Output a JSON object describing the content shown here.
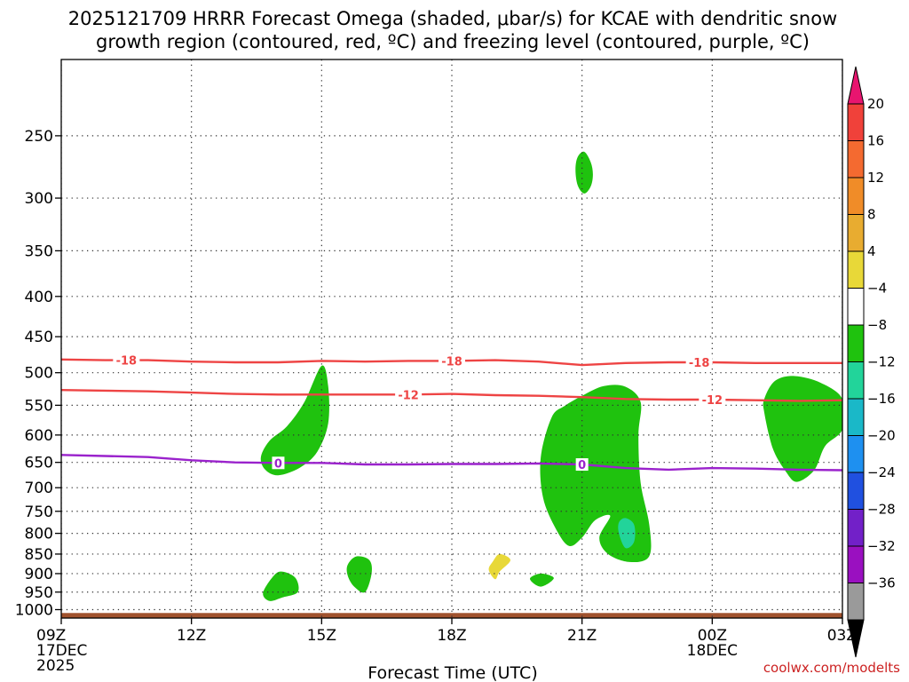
{
  "chart_data": {
    "type": "contour",
    "title_line1": "2025121709 HRRR Forecast Omega (shaded, μbar/s) for KCAE with dendritic snow",
    "title_line2": "growth region (contoured, red, ºC) and freezing level (contoured, purple, ºC)",
    "xlabel": "Forecast Time (UTC)",
    "x_ticks": [
      {
        "hour": 0,
        "label": "09Z",
        "sub1": "17DEC",
        "sub2": "2025"
      },
      {
        "hour": 3,
        "label": "12Z",
        "sub1": "",
        "sub2": ""
      },
      {
        "hour": 6,
        "label": "15Z",
        "sub1": "",
        "sub2": ""
      },
      {
        "hour": 9,
        "label": "18Z",
        "sub1": "",
        "sub2": ""
      },
      {
        "hour": 12,
        "label": "21Z",
        "sub1": "",
        "sub2": ""
      },
      {
        "hour": 15,
        "label": "00Z",
        "sub1": "18DEC",
        "sub2": ""
      },
      {
        "hour": 18,
        "label": "03Z",
        "sub1": "",
        "sub2": ""
      }
    ],
    "x_range_hours": [
      0,
      18
    ],
    "y_axis": "pressure (hPa), log scale, reversed",
    "y_range_hpa": [
      1025,
      200
    ],
    "y_ticks": [
      250,
      300,
      350,
      400,
      450,
      500,
      550,
      600,
      650,
      700,
      750,
      800,
      850,
      900,
      950,
      1000
    ],
    "grid": "dotted",
    "colorbar": {
      "unit": "μbar/s",
      "labels": [
        "20",
        "16",
        "12",
        "8",
        "4",
        "−4",
        "−8",
        "−12",
        "−16",
        "−20",
        "−24",
        "−28",
        "−32",
        "−36"
      ],
      "colors": [
        "#e8156f",
        "#f0413a",
        "#f46a30",
        "#f08c28",
        "#e8ac30",
        "#e8d838",
        "#ffffff",
        "#1fc20e",
        "#22d49a",
        "#1ab8c8",
        "#1e90f0",
        "#2050e0",
        "#7220c8",
        "#9a10c0",
        "#9a9a9a",
        "#000000"
      ]
    },
    "lines": [
      {
        "name": "dendritic growth -18C",
        "label": "-18",
        "color": "#ee4444",
        "points": [
          [
            0,
            481
          ],
          [
            1,
            482
          ],
          [
            2,
            482
          ],
          [
            3,
            484
          ],
          [
            4,
            485
          ],
          [
            5,
            485
          ],
          [
            6,
            483
          ],
          [
            7,
            484
          ],
          [
            8,
            483
          ],
          [
            9,
            483
          ],
          [
            10,
            482
          ],
          [
            11,
            484
          ],
          [
            12,
            489
          ],
          [
            13,
            486
          ],
          [
            14,
            485
          ],
          [
            15,
            485
          ],
          [
            16,
            486
          ],
          [
            17,
            486
          ],
          [
            18,
            486
          ]
        ],
        "label_hours": [
          1.5,
          9.0,
          14.7
        ]
      },
      {
        "name": "dendritic growth -12C",
        "label": "-12",
        "color": "#ee4444",
        "points": [
          [
            0,
            526
          ],
          [
            1,
            527
          ],
          [
            2,
            528
          ],
          [
            3,
            530
          ],
          [
            4,
            532
          ],
          [
            5,
            533
          ],
          [
            6,
            533
          ],
          [
            7,
            533
          ],
          [
            8,
            533
          ],
          [
            9,
            532
          ],
          [
            10,
            534
          ],
          [
            11,
            535
          ],
          [
            12,
            537
          ],
          [
            13,
            540
          ],
          [
            14,
            541
          ],
          [
            15,
            541
          ],
          [
            16,
            542
          ],
          [
            17,
            543
          ],
          [
            18,
            542
          ]
        ],
        "label_hours": [
          8.0,
          15.0
        ]
      },
      {
        "name": "freezing level 0C",
        "label": "0",
        "color": "#9a22cc",
        "points": [
          [
            0,
            636
          ],
          [
            1,
            638
          ],
          [
            2,
            640
          ],
          [
            3,
            646
          ],
          [
            4,
            650
          ],
          [
            5,
            651
          ],
          [
            6,
            651
          ],
          [
            7,
            654
          ],
          [
            8,
            654
          ],
          [
            9,
            653
          ],
          [
            10,
            653
          ],
          [
            11,
            652
          ],
          [
            12,
            654
          ],
          [
            13,
            661
          ],
          [
            14,
            664
          ],
          [
            15,
            661
          ],
          [
            16,
            662
          ],
          [
            17,
            664
          ],
          [
            18,
            665
          ]
        ],
        "label_hours": [
          5.0,
          12.0
        ]
      }
    ],
    "shaded_regions": [
      {
        "category": "-4 to -8",
        "color": "#1fc20e",
        "points": [
          [
            12.05,
            262
          ],
          [
            12.2,
            270
          ],
          [
            12.25,
            280
          ],
          [
            12.2,
            290
          ],
          [
            12.05,
            296
          ],
          [
            11.9,
            289
          ],
          [
            11.85,
            276
          ],
          [
            11.9,
            266
          ]
        ]
      },
      {
        "category": "-4 to -8",
        "color": "#1fc20e",
        "points": [
          [
            6.0,
            490
          ],
          [
            6.15,
            520
          ],
          [
            6.15,
            580
          ],
          [
            5.9,
            630
          ],
          [
            5.5,
            660
          ],
          [
            5.0,
            675
          ],
          [
            4.7,
            664
          ],
          [
            4.6,
            640
          ],
          [
            4.8,
            610
          ],
          [
            5.2,
            585
          ],
          [
            5.6,
            545
          ]
        ]
      },
      {
        "category": "-4 to -8",
        "color": "#1fc20e",
        "points": [
          [
            11.3,
            570
          ],
          [
            11.05,
            640
          ],
          [
            11.1,
            720
          ],
          [
            11.4,
            790
          ],
          [
            11.7,
            830
          ],
          [
            12.0,
            810
          ],
          [
            12.3,
            770
          ],
          [
            12.65,
            760
          ],
          [
            12.4,
            810
          ],
          [
            12.6,
            850
          ],
          [
            13.1,
            870
          ],
          [
            13.55,
            855
          ],
          [
            13.55,
            780
          ],
          [
            13.35,
            690
          ],
          [
            13.3,
            600
          ],
          [
            13.35,
            545
          ],
          [
            13.0,
            521
          ],
          [
            12.5,
            520
          ],
          [
            12.0,
            535
          ],
          [
            11.6,
            551
          ]
        ]
      },
      {
        "category": "-4 to -8",
        "color": "#1fc20e",
        "points": [
          [
            16.2,
            562
          ],
          [
            16.4,
            625
          ],
          [
            16.7,
            668
          ],
          [
            16.95,
            688
          ],
          [
            17.35,
            665
          ],
          [
            17.6,
            620
          ],
          [
            18.0,
            590
          ],
          [
            18.0,
            540
          ],
          [
            17.5,
            515
          ],
          [
            16.9,
            505
          ],
          [
            16.45,
            512
          ],
          [
            16.2,
            540
          ]
        ]
      },
      {
        "category": "-4 to -8",
        "color": "#1fc20e",
        "points": [
          [
            4.65,
            952
          ],
          [
            4.9,
            905
          ],
          [
            5.1,
            895
          ],
          [
            5.4,
            912
          ],
          [
            5.45,
            950
          ],
          [
            5.1,
            965
          ],
          [
            4.8,
            975
          ]
        ]
      },
      {
        "category": "-4 to -8",
        "color": "#1fc20e",
        "points": [
          [
            6.6,
            877
          ],
          [
            6.8,
            856
          ],
          [
            7.1,
            865
          ],
          [
            7.15,
            900
          ],
          [
            7.0,
            950
          ],
          [
            6.75,
            935
          ],
          [
            6.6,
            905
          ]
        ]
      },
      {
        "category": "-4 to -8",
        "color": "#1fc20e",
        "points": [
          [
            10.8,
            914
          ],
          [
            11.05,
            900
          ],
          [
            11.35,
            912
          ],
          [
            11.05,
            935
          ]
        ]
      },
      {
        "category": "-8 to -12",
        "color": "#22d49a",
        "points": [
          [
            13.0,
            765
          ],
          [
            13.2,
            780
          ],
          [
            13.2,
            820
          ],
          [
            13.0,
            835
          ],
          [
            12.85,
            800
          ],
          [
            12.85,
            775
          ]
        ]
      },
      {
        "category": "4 to 8",
        "color": "#e8d838",
        "points": [
          [
            9.95,
            868
          ],
          [
            10.1,
            850
          ],
          [
            10.35,
            865
          ],
          [
            10.1,
            895
          ],
          [
            10.0,
            915
          ],
          [
            9.85,
            890
          ]
        ]
      }
    ],
    "ground_level_hpa": 1010,
    "ground_color": "#a0522d"
  },
  "credit": "coolwx.com/modelts"
}
